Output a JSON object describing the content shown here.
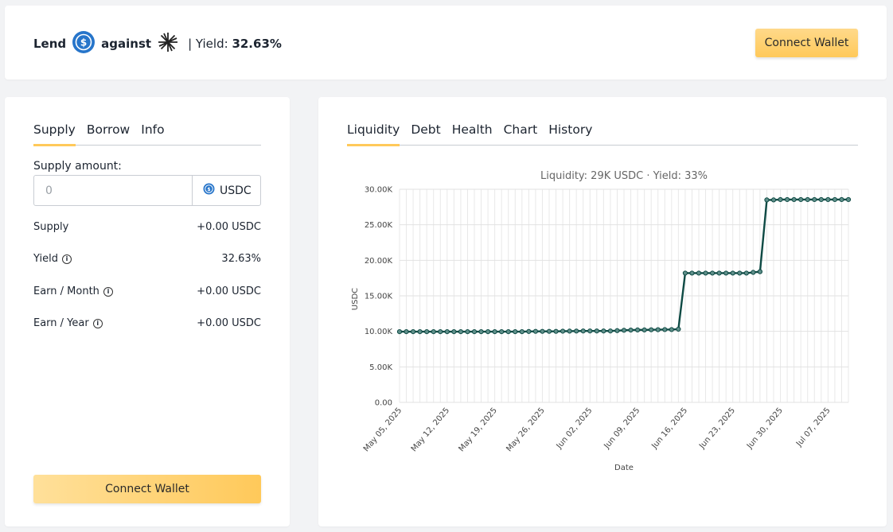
{
  "header": {
    "lend": "Lend",
    "against": "against",
    "yield_label": "| Yield:",
    "yield_value": "32.63%",
    "connect_label": "Connect Wallet",
    "coin_icon": "usdc-icon",
    "collateral_icon": "collateral-token-icon"
  },
  "left_panel": {
    "tabs": [
      {
        "label": "Supply"
      },
      {
        "label": "Borrow"
      },
      {
        "label": "Info"
      }
    ],
    "amount_label": "Supply amount:",
    "amount_placeholder": "0",
    "unit": "USDC",
    "rows": [
      {
        "label": "Supply",
        "value": "+0.00 USDC"
      },
      {
        "label": "Yield",
        "value": "32.63%"
      },
      {
        "label": "Earn / Month",
        "value": "+0.00 USDC"
      },
      {
        "label": "Earn / Year",
        "value": "+0.00 USDC"
      }
    ],
    "connect_label": "Connect Wallet"
  },
  "right_panel": {
    "tabs": [
      {
        "label": "Liquidity"
      },
      {
        "label": "Debt"
      },
      {
        "label": "Health"
      },
      {
        "label": "Chart"
      },
      {
        "label": "History"
      }
    ]
  },
  "colors": {
    "accent": "#ffc95a",
    "line": "#0e4a44",
    "usdc": "#2775ca"
  },
  "chart_data": {
    "type": "line",
    "title": "Liquidity: 29K USDC · Yield: 33%",
    "xlabel": "Date",
    "ylabel": "USDC",
    "ylim": [
      0,
      30000
    ],
    "yticks": [
      "0.00",
      "5.00K",
      "10.00K",
      "15.00K",
      "20.00K",
      "25.00K",
      "30.00K"
    ],
    "xticks": [
      "May 05, 2025",
      "May 12, 2025",
      "May 19, 2025",
      "May 26, 2025",
      "Jun 02, 2025",
      "Jun 09, 2025",
      "Jun 16, 2025",
      "Jun 23, 2025",
      "Jun 30, 2025",
      "Jul 07, 2025"
    ],
    "grid": true,
    "series": [
      {
        "x": [
          "2025-05-05",
          "2025-05-06",
          "2025-05-07",
          "2025-05-08",
          "2025-05-09",
          "2025-05-10",
          "2025-05-11",
          "2025-05-12",
          "2025-05-13",
          "2025-05-14",
          "2025-05-15",
          "2025-05-16",
          "2025-05-17",
          "2025-05-18",
          "2025-05-19",
          "2025-05-20",
          "2025-05-21",
          "2025-05-22",
          "2025-05-23",
          "2025-05-24",
          "2025-05-25",
          "2025-05-26",
          "2025-05-27",
          "2025-05-28",
          "2025-05-29",
          "2025-05-30",
          "2025-05-31",
          "2025-06-01",
          "2025-06-02",
          "2025-06-03",
          "2025-06-04",
          "2025-06-05",
          "2025-06-06",
          "2025-06-07",
          "2025-06-08",
          "2025-06-09",
          "2025-06-10",
          "2025-06-11",
          "2025-06-12",
          "2025-06-13",
          "2025-06-14",
          "2025-06-15",
          "2025-06-16",
          "2025-06-17",
          "2025-06-18",
          "2025-06-19",
          "2025-06-20",
          "2025-06-21",
          "2025-06-22",
          "2025-06-23",
          "2025-06-24",
          "2025-06-25",
          "2025-06-26",
          "2025-06-27",
          "2025-06-28",
          "2025-06-29",
          "2025-06-30",
          "2025-07-01",
          "2025-07-02",
          "2025-07-03",
          "2025-07-04",
          "2025-07-05",
          "2025-07-06",
          "2025-07-07",
          "2025-07-08",
          "2025-07-09",
          "2025-07-10"
        ],
        "values": [
          9950,
          9950,
          9950,
          9950,
          9950,
          9950,
          9950,
          9950,
          9950,
          9950,
          9950,
          9950,
          9950,
          9950,
          9950,
          9950,
          9950,
          9950,
          9950,
          9980,
          10000,
          10000,
          10000,
          10000,
          10020,
          10030,
          10040,
          10050,
          10050,
          10050,
          10050,
          10050,
          10100,
          10150,
          10180,
          10200,
          10200,
          10220,
          10230,
          10250,
          10250,
          10300,
          18200,
          18200,
          18200,
          18200,
          18200,
          18200,
          18200,
          18200,
          18200,
          18200,
          18300,
          18400,
          28500,
          28500,
          28550,
          28550,
          28550,
          28550,
          28550,
          28550,
          28550,
          28550,
          28550,
          28550,
          28550
        ]
      }
    ]
  }
}
